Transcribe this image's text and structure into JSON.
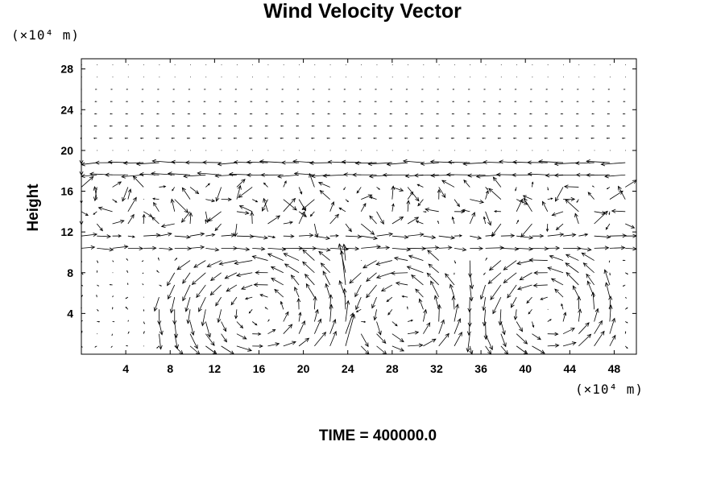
{
  "chart_data": {
    "type": "vector_field",
    "title": "Wind Velocity Vector",
    "ylabel": "Height",
    "xlabel": "",
    "x_unit": "(×10⁴ m)",
    "y_unit": "(×10⁴ m)",
    "xlim": [
      0,
      50
    ],
    "ylim": [
      0,
      29
    ],
    "x_ticks": [
      "4",
      "8",
      "12",
      "16",
      "20",
      "24",
      "28",
      "32",
      "36",
      "40",
      "44",
      "48"
    ],
    "y_ticks": [
      "4",
      "8",
      "12",
      "16",
      "20",
      "24",
      "28"
    ],
    "grid": false,
    "field_features": {
      "jet_heights": [
        19,
        18.2,
        12,
        10.2
      ],
      "vortices": [
        {
          "x_center": 16,
          "y_center": 4,
          "radius_x": 7.5,
          "radius_y": 6
        },
        {
          "x_center": 29,
          "y_center": 4,
          "radius_x": 4.5,
          "radius_y": 5.5
        },
        {
          "x_center": 42,
          "y_center": 4,
          "radius_x": 5.5,
          "radius_y": 5.5
        }
      ]
    },
    "annotation": "TIME = 400000.0"
  }
}
